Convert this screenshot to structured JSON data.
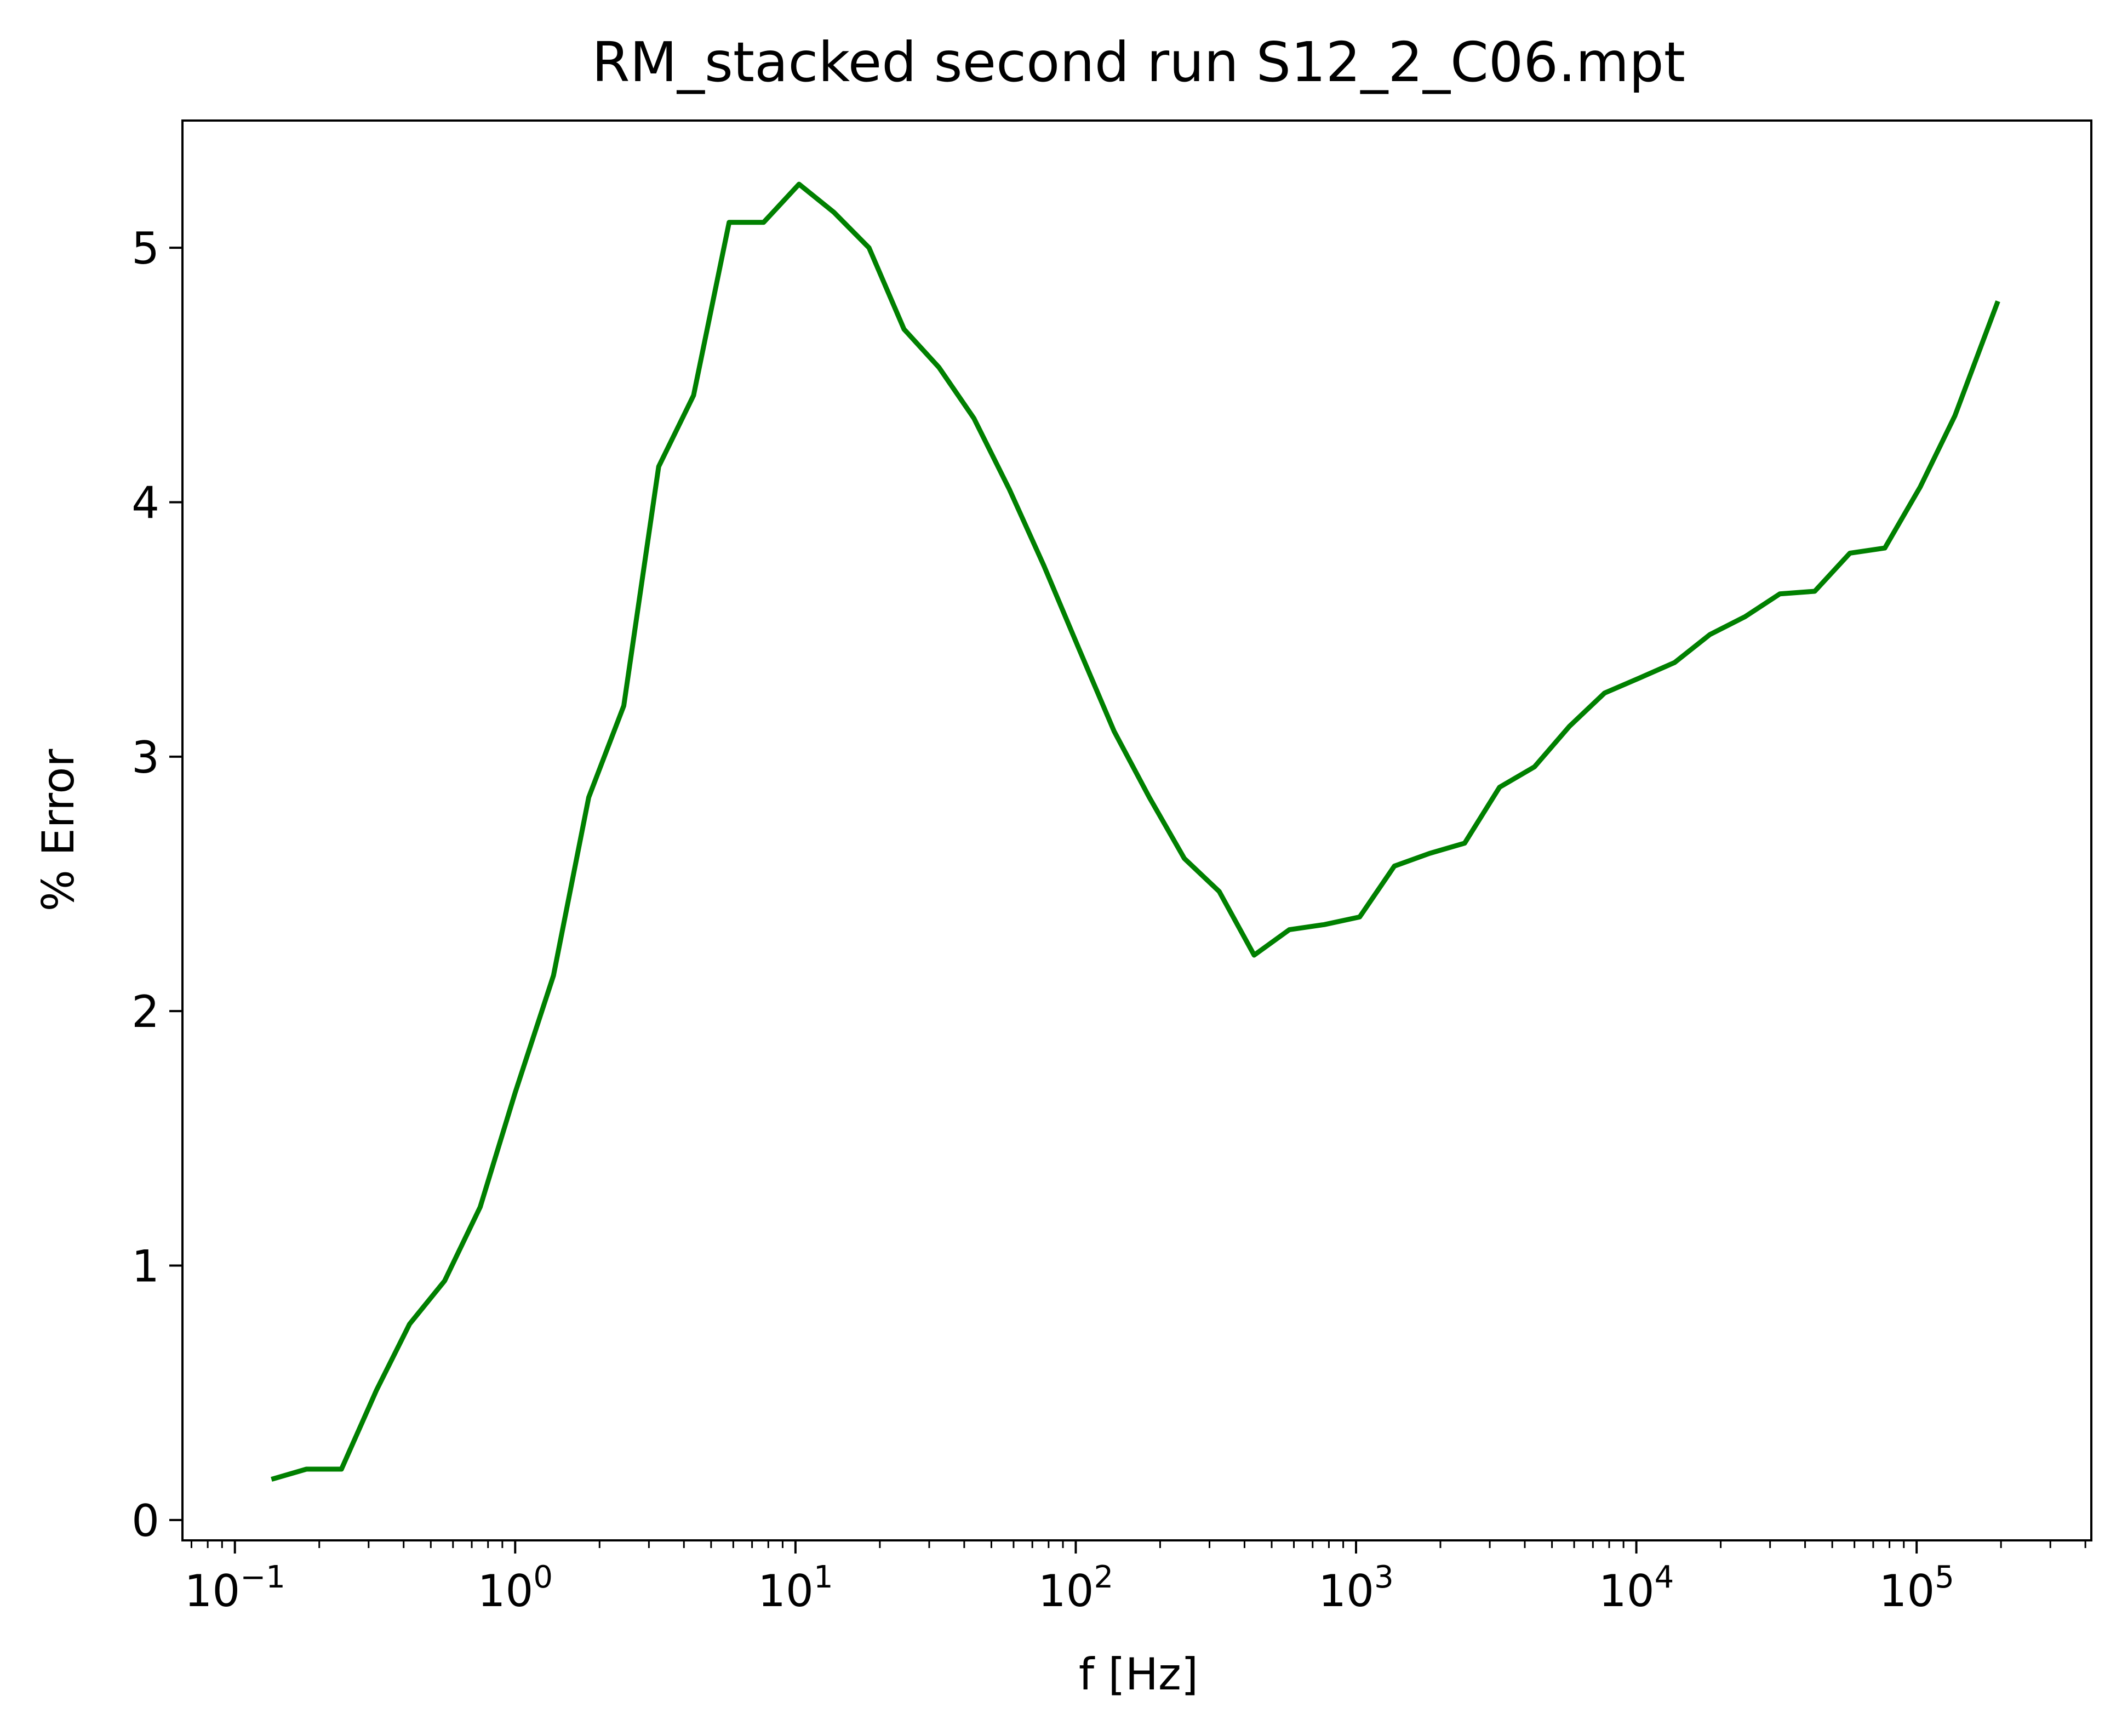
{
  "chart_data": {
    "type": "line",
    "title": "RM_stacked second run S12_2_C06.mpt",
    "xlabel": "f [Hz]",
    "ylabel": "% Error",
    "xscale": "log",
    "xlim": [
      0.065,
      420000
    ],
    "ylim": [
      -0.08,
      5.5
    ],
    "grid": false,
    "legend": "none",
    "x_ticks": [
      {
        "value": 0.1,
        "base": "10",
        "exp": "−1"
      },
      {
        "value": 1,
        "base": "10",
        "exp": "0"
      },
      {
        "value": 10,
        "base": "10",
        "exp": "1"
      },
      {
        "value": 100,
        "base": "10",
        "exp": "2"
      },
      {
        "value": 1000,
        "base": "10",
        "exp": "3"
      },
      {
        "value": 10000,
        "base": "10",
        "exp": "4"
      },
      {
        "value": 100000,
        "base": "10",
        "exp": "5"
      }
    ],
    "y_ticks": [
      {
        "value": 0,
        "label": "0"
      },
      {
        "value": 1,
        "label": "1"
      },
      {
        "value": 2,
        "label": "2"
      },
      {
        "value": 3,
        "label": "3"
      },
      {
        "value": 4,
        "label": "4"
      },
      {
        "value": 5,
        "label": "5"
      }
    ],
    "series": [
      {
        "color": "#008000",
        "x": [
          0.135,
          0.18,
          0.24,
          0.32,
          0.42,
          0.56,
          0.75,
          1.0,
          1.37,
          1.83,
          2.44,
          3.25,
          4.33,
          5.8,
          7.7,
          10.3,
          13.7,
          18.3,
          24.4,
          32.5,
          43.3,
          58,
          77,
          103,
          137,
          183,
          244,
          325,
          433,
          578,
          770,
          1030,
          1370,
          1830,
          2440,
          3250,
          4330,
          5780,
          7700,
          10300,
          13700,
          18300,
          24400,
          32500,
          43300,
          57800,
          77000,
          103000,
          137000,
          195000
        ],
        "y": [
          0.16,
          0.2,
          0.2,
          0.51,
          0.77,
          0.94,
          1.23,
          1.68,
          2.14,
          2.84,
          3.2,
          4.14,
          4.42,
          5.1,
          5.1,
          5.25,
          5.14,
          5.0,
          4.68,
          4.53,
          4.33,
          4.05,
          3.75,
          3.42,
          3.1,
          2.84,
          2.6,
          2.47,
          2.22,
          2.32,
          2.34,
          2.37,
          2.57,
          2.62,
          2.66,
          2.88,
          2.96,
          3.12,
          3.25,
          3.31,
          3.37,
          3.48,
          3.55,
          3.64,
          3.65,
          3.8,
          3.82,
          4.06,
          4.34,
          4.79
        ]
      }
    ]
  }
}
